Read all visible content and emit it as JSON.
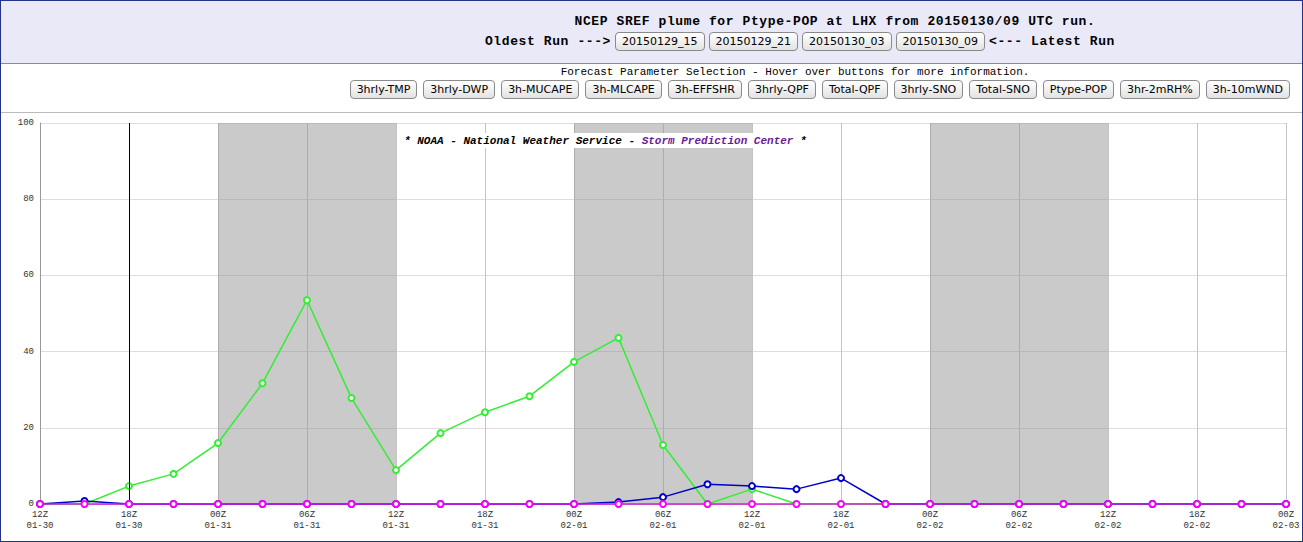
{
  "header": {
    "title": "NCEP SREF plume for Ptype-POP at LHX from 20150130/09 UTC run.",
    "oldest_label": "Oldest Run --->",
    "runs": [
      "20150129_15",
      "20150129_21",
      "20150130_03",
      "20150130_09"
    ],
    "latest_label": "<--- Latest Run"
  },
  "parameters": {
    "caption": "Forecast Parameter Selection - Hover over buttons for more information.",
    "buttons": [
      "3hrly-TMP",
      "3hrly-DWP",
      "3h-MUCAPE",
      "3h-MLCAPE",
      "3h-EFFSHR",
      "3hrly-QPF",
      "Total-QPF",
      "3hrly-SNO",
      "Total-SNO",
      "Ptype-POP",
      "3hr-2mRH%",
      "3h-10mWND"
    ]
  },
  "chart_data": {
    "type": "line",
    "annotation_parts": [
      "* NOAA - National Weather Service - ",
      "Storm Prediction Center",
      " *"
    ],
    "categories": [
      "12Z\n01-30",
      null,
      "18Z\n01-30",
      null,
      "00Z\n01-31",
      null,
      "06Z\n01-31",
      null,
      "12Z\n01-31",
      null,
      "18Z\n01-31",
      null,
      "00Z\n02-01",
      null,
      "06Z\n02-01",
      null,
      "12Z\n02-01",
      null,
      "18Z\n02-01",
      null,
      "00Z\n02-02",
      null,
      "06Z\n02-02",
      null,
      "12Z\n02-02",
      null,
      "18Z\n02-02",
      null,
      "00Z\n02-03"
    ],
    "series": [
      {
        "color": "#33ee33",
        "marker": "circle",
        "values": [
          0,
          0,
          4.7,
          7.9,
          16,
          31.7,
          53.5,
          27.8,
          8.9,
          18.6,
          24.1,
          28.3,
          37.3,
          43.6,
          15.5,
          0,
          3.9,
          0,
          0,
          0,
          0,
          0,
          0,
          0,
          0,
          0,
          0,
          0,
          0
        ]
      },
      {
        "color": "#0000cc",
        "marker": "circle",
        "values": [
          0,
          0.8,
          0,
          0,
          0,
          0,
          0,
          0,
          0,
          0,
          0,
          0,
          0,
          0.5,
          1.8,
          5.2,
          4.7,
          3.9,
          6.8,
          0,
          0,
          0,
          0,
          0,
          0,
          0,
          0,
          0,
          0
        ]
      },
      {
        "color": "#ff00ff",
        "marker": "circle",
        "values": [
          0,
          0,
          0,
          0,
          0,
          0,
          0,
          0,
          0,
          0,
          0,
          0,
          0,
          0,
          0,
          0,
          0,
          0,
          0,
          0,
          0,
          0,
          0,
          0,
          0,
          0,
          0,
          0,
          0
        ]
      }
    ],
    "shaded": [
      [
        "00Z\n01-31",
        "12Z\n01-31"
      ],
      [
        "00Z\n02-01",
        "12Z\n02-01"
      ],
      [
        "00Z\n02-02",
        "12Z\n02-02"
      ]
    ],
    "vlines": [
      "18Z\n01-30"
    ],
    "ylim": [
      0,
      100
    ],
    "yticks": [
      0,
      20,
      40,
      60,
      80,
      100
    ],
    "grid": true
  }
}
